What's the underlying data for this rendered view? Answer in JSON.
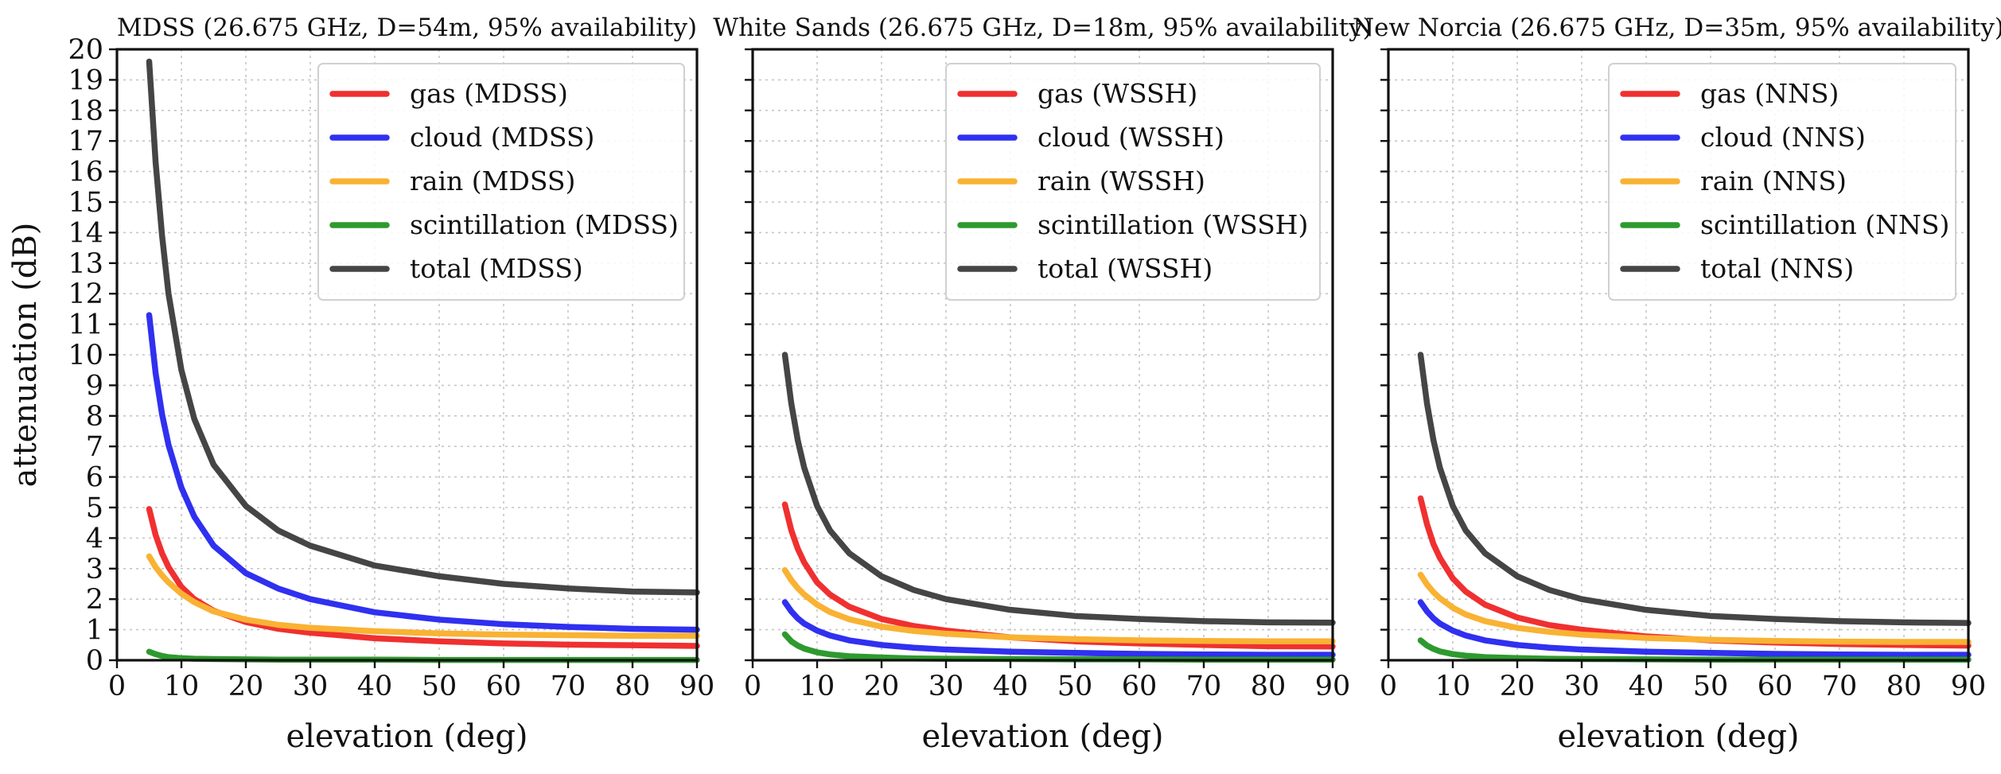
{
  "chart_data": [
    {
      "type": "line",
      "title": "MDSS (26.675 GHz, D=54m, 95% availability)",
      "xlabel": "elevation (deg)",
      "ylabel": "attenuation (dB)",
      "xlim": [
        0,
        90
      ],
      "ylim": [
        0,
        20
      ],
      "xticks": [
        0,
        10,
        20,
        30,
        40,
        50,
        60,
        70,
        80,
        90
      ],
      "yticks": [
        0,
        1,
        2,
        3,
        4,
        5,
        6,
        7,
        8,
        9,
        10,
        11,
        12,
        13,
        14,
        15,
        16,
        17,
        18,
        19,
        20
      ],
      "grid": true,
      "legend_position": "top-right",
      "x": [
        5,
        6,
        7,
        8,
        10,
        12,
        15,
        20,
        25,
        30,
        40,
        50,
        60,
        70,
        80,
        90
      ],
      "series": [
        {
          "name": "gas (MDSS)",
          "color": "#f03030",
          "values": [
            4.95,
            4.1,
            3.5,
            3.05,
            2.4,
            2.0,
            1.62,
            1.25,
            1.03,
            0.9,
            0.72,
            0.62,
            0.55,
            0.51,
            0.49,
            0.47
          ]
        },
        {
          "name": "cloud (MDSS)",
          "color": "#3030f0",
          "values": [
            11.3,
            9.4,
            8.05,
            7.05,
            5.65,
            4.7,
            3.75,
            2.85,
            2.35,
            2.0,
            1.57,
            1.33,
            1.18,
            1.09,
            1.03,
            1.0
          ]
        },
        {
          "name": "rain (MDSS)",
          "color": "#f9b233",
          "values": [
            3.4,
            3.05,
            2.78,
            2.55,
            2.18,
            1.9,
            1.6,
            1.33,
            1.16,
            1.06,
            0.95,
            0.88,
            0.84,
            0.82,
            0.8,
            0.8
          ]
        },
        {
          "name": "scintillation (MDSS)",
          "color": "#2e9a2e",
          "values": [
            0.28,
            0.2,
            0.14,
            0.1,
            0.07,
            0.05,
            0.04,
            0.03,
            0.02,
            0.02,
            0.02,
            0.01,
            0.01,
            0.01,
            0.01,
            0.01
          ]
        },
        {
          "name": "total (MDSS)",
          "color": "#454545",
          "values": [
            19.6,
            16.3,
            13.9,
            12.0,
            9.5,
            7.9,
            6.4,
            5.05,
            4.25,
            3.75,
            3.1,
            2.75,
            2.5,
            2.35,
            2.25,
            2.22
          ]
        }
      ]
    },
    {
      "type": "line",
      "title": "White Sands (26.675 GHz, D=18m, 95% availability)",
      "xlabel": "elevation (deg)",
      "ylabel": "",
      "xlim": [
        0,
        90
      ],
      "ylim": [
        0,
        20
      ],
      "xticks": [
        0,
        10,
        20,
        30,
        40,
        50,
        60,
        70,
        80,
        90
      ],
      "yticks": [
        0,
        1,
        2,
        3,
        4,
        5,
        6,
        7,
        8,
        9,
        10,
        11,
        12,
        13,
        14,
        15,
        16,
        17,
        18,
        19,
        20
      ],
      "grid": true,
      "legend_position": "top-right",
      "x": [
        5,
        6,
        7,
        8,
        10,
        12,
        15,
        20,
        25,
        30,
        40,
        50,
        60,
        70,
        80,
        90
      ],
      "series": [
        {
          "name": "gas (WSSH)",
          "color": "#f03030",
          "values": [
            5.1,
            4.25,
            3.65,
            3.2,
            2.55,
            2.15,
            1.75,
            1.35,
            1.12,
            0.97,
            0.75,
            0.62,
            0.55,
            0.5,
            0.46,
            0.45
          ]
        },
        {
          "name": "cloud (WSSH)",
          "color": "#3030f0",
          "values": [
            1.9,
            1.6,
            1.37,
            1.2,
            0.97,
            0.81,
            0.65,
            0.5,
            0.41,
            0.35,
            0.28,
            0.24,
            0.21,
            0.19,
            0.18,
            0.18
          ]
        },
        {
          "name": "rain (WSSH)",
          "color": "#f9b233",
          "values": [
            2.95,
            2.62,
            2.36,
            2.15,
            1.82,
            1.58,
            1.34,
            1.1,
            0.96,
            0.87,
            0.75,
            0.69,
            0.65,
            0.63,
            0.62,
            0.62
          ]
        },
        {
          "name": "scintillation (WSSH)",
          "color": "#2e9a2e",
          "values": [
            0.85,
            0.62,
            0.48,
            0.38,
            0.26,
            0.19,
            0.13,
            0.09,
            0.06,
            0.05,
            0.04,
            0.03,
            0.03,
            0.02,
            0.02,
            0.02
          ]
        },
        {
          "name": "total (WSSH)",
          "color": "#454545",
          "values": [
            10.0,
            8.4,
            7.2,
            6.3,
            5.05,
            4.25,
            3.5,
            2.75,
            2.3,
            2.0,
            1.65,
            1.45,
            1.35,
            1.28,
            1.24,
            1.23
          ]
        }
      ]
    },
    {
      "type": "line",
      "title": "New Norcia (26.675 GHz, D=35m, 95% availability)",
      "xlabel": "elevation (deg)",
      "ylabel": "",
      "xlim": [
        0,
        90
      ],
      "ylim": [
        0,
        20
      ],
      "xticks": [
        0,
        10,
        20,
        30,
        40,
        50,
        60,
        70,
        80,
        90
      ],
      "yticks": [
        0,
        1,
        2,
        3,
        4,
        5,
        6,
        7,
        8,
        9,
        10,
        11,
        12,
        13,
        14,
        15,
        16,
        17,
        18,
        19,
        20
      ],
      "grid": true,
      "legend_position": "top-right",
      "x": [
        5,
        6,
        7,
        8,
        10,
        12,
        15,
        20,
        25,
        30,
        40,
        50,
        60,
        70,
        80,
        90
      ],
      "series": [
        {
          "name": "gas (NNS)",
          "color": "#f03030",
          "values": [
            5.3,
            4.45,
            3.8,
            3.35,
            2.68,
            2.25,
            1.82,
            1.4,
            1.15,
            1.0,
            0.78,
            0.65,
            0.58,
            0.53,
            0.5,
            0.48
          ]
        },
        {
          "name": "cloud (NNS)",
          "color": "#3030f0",
          "values": [
            1.9,
            1.6,
            1.37,
            1.2,
            0.97,
            0.81,
            0.65,
            0.5,
            0.41,
            0.35,
            0.28,
            0.24,
            0.21,
            0.19,
            0.18,
            0.18
          ]
        },
        {
          "name": "rain (NNS)",
          "color": "#f9b233",
          "values": [
            2.8,
            2.48,
            2.23,
            2.03,
            1.72,
            1.5,
            1.28,
            1.06,
            0.93,
            0.84,
            0.73,
            0.67,
            0.63,
            0.61,
            0.6,
            0.6
          ]
        },
        {
          "name": "scintillation (NNS)",
          "color": "#2e9a2e",
          "values": [
            0.65,
            0.48,
            0.37,
            0.29,
            0.2,
            0.15,
            0.1,
            0.07,
            0.05,
            0.04,
            0.03,
            0.02,
            0.02,
            0.02,
            0.02,
            0.02
          ]
        },
        {
          "name": "total (NNS)",
          "color": "#454545",
          "values": [
            10.0,
            8.4,
            7.2,
            6.3,
            5.05,
            4.25,
            3.5,
            2.75,
            2.3,
            2.0,
            1.65,
            1.45,
            1.35,
            1.28,
            1.24,
            1.22
          ]
        }
      ]
    }
  ]
}
